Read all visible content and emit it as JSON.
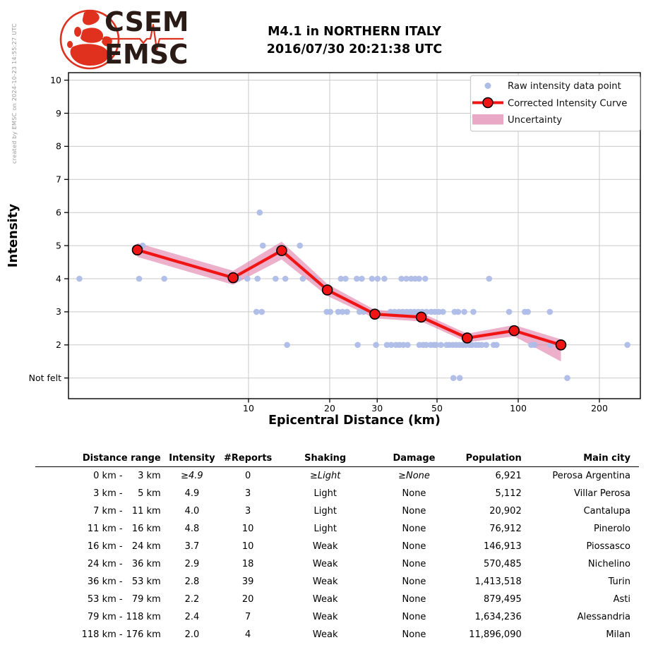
{
  "logo": {
    "top_text": "CSEM",
    "bottom_text": "EMSC",
    "red": "#e0301e",
    "dark": "#2b1b17"
  },
  "header": {
    "title_line1": "M4.1 in NORTHERN ITALY",
    "title_line2": "2016/07/30 20:21:38 UTC"
  },
  "watermark": "created by EMSC on 2024-10-23 14:55:27 UTC",
  "chart_data": {
    "type": "line",
    "title": "M4.1 in NORTHERN ITALY 2016/07/30 20:21:38 UTC",
    "xlabel": "Epicentral Distance (km)",
    "ylabel": "Intensity",
    "x_scale": "log",
    "x_ticks": [
      10,
      20,
      30,
      50,
      100,
      200
    ],
    "x_range_km": [
      2.2,
      280
    ],
    "y_tick_values": [
      10,
      9,
      8,
      7,
      6,
      5,
      4,
      3,
      2,
      1
    ],
    "y_tick_labels": [
      "10",
      "9",
      "8",
      "7",
      "6",
      "5",
      "4",
      "3",
      "2",
      "Not felt"
    ],
    "y_range": [
      0.38,
      10.23
    ],
    "grid": true,
    "legend_position": "upper right",
    "legend": [
      "Raw intensity data point",
      "Corrected Intensity Curve",
      "Uncertainty"
    ],
    "colors": {
      "raw": "#aebce8",
      "curve": "#f11414",
      "marker_edge": "#000000",
      "band": "rgba(219,97,149,0.5)",
      "band_legend": "#e9a8c5",
      "grid": "#c9c9c9",
      "frame": "#000000"
    },
    "series": [
      {
        "name": "Corrected Intensity Curve",
        "d_km": [
          3.87,
          8.77,
          13.27,
          19.6,
          29.4,
          43.7,
          64.7,
          96.6,
          144
        ],
        "intensity": [
          4.87,
          4.03,
          4.85,
          3.66,
          2.93,
          2.84,
          2.21,
          2.43,
          2.0
        ]
      }
    ],
    "band": {
      "d_km": [
        3.87,
        8.77,
        13.27,
        19.6,
        29.4,
        43.7,
        64.7,
        96.6,
        144
      ],
      "upper": [
        5.08,
        4.24,
        5.12,
        3.84,
        3.06,
        2.97,
        2.34,
        2.6,
        2.17
      ],
      "lower": [
        4.66,
        3.82,
        4.58,
        3.48,
        2.8,
        2.71,
        2.08,
        2.26,
        1.5
      ]
    },
    "raw_points": [
      [
        11.0,
        6
      ],
      [
        4.05,
        5
      ],
      [
        11.3,
        5
      ],
      [
        15.5,
        5
      ],
      [
        2.36,
        4
      ],
      [
        3.93,
        4
      ],
      [
        4.87,
        4
      ],
      [
        8.8,
        4
      ],
      [
        9.15,
        4
      ],
      [
        9.9,
        4
      ],
      [
        10.8,
        4
      ],
      [
        12.6,
        4
      ],
      [
        13.7,
        4
      ],
      [
        15.9,
        4
      ],
      [
        17.6,
        4
      ],
      [
        22.0,
        4
      ],
      [
        22.9,
        4
      ],
      [
        25.2,
        4
      ],
      [
        26.3,
        4
      ],
      [
        28.7,
        4
      ],
      [
        30.1,
        4
      ],
      [
        31.9,
        4
      ],
      [
        36.9,
        4
      ],
      [
        38.5,
        4
      ],
      [
        40.1,
        4
      ],
      [
        41.5,
        4
      ],
      [
        42.9,
        4
      ],
      [
        45.2,
        4
      ],
      [
        78.0,
        4
      ],
      [
        10.7,
        3
      ],
      [
        11.2,
        3
      ],
      [
        19.5,
        3
      ],
      [
        20.1,
        3
      ],
      [
        21.5,
        3
      ],
      [
        22.3,
        3
      ],
      [
        23.2,
        3
      ],
      [
        25.8,
        3
      ],
      [
        26.7,
        3
      ],
      [
        28.8,
        3
      ],
      [
        33.6,
        3
      ],
      [
        34.8,
        3
      ],
      [
        36.1,
        3
      ],
      [
        37.3,
        3
      ],
      [
        38.6,
        3
      ],
      [
        39.9,
        3
      ],
      [
        41.2,
        3
      ],
      [
        42.6,
        3
      ],
      [
        44.1,
        3
      ],
      [
        45.7,
        3
      ],
      [
        47.6,
        3
      ],
      [
        49.1,
        3
      ],
      [
        50.8,
        3
      ],
      [
        52.6,
        3
      ],
      [
        58.1,
        3
      ],
      [
        59.9,
        3
      ],
      [
        63.1,
        3
      ],
      [
        68.2,
        3
      ],
      [
        92.5,
        3
      ],
      [
        105.8,
        3
      ],
      [
        108.6,
        3
      ],
      [
        131.0,
        3
      ],
      [
        13.9,
        2
      ],
      [
        25.4,
        2
      ],
      [
        29.7,
        2
      ],
      [
        32.6,
        2
      ],
      [
        33.8,
        2
      ],
      [
        35.2,
        2
      ],
      [
        36.3,
        2
      ],
      [
        37.5,
        2
      ],
      [
        38.9,
        2
      ],
      [
        43.0,
        2
      ],
      [
        44.4,
        2
      ],
      [
        45.6,
        2
      ],
      [
        47.4,
        2
      ],
      [
        48.8,
        2
      ],
      [
        49.7,
        2
      ],
      [
        51.7,
        2
      ],
      [
        54.2,
        2
      ],
      [
        55.5,
        2
      ],
      [
        57.2,
        2
      ],
      [
        58.8,
        2
      ],
      [
        60.5,
        2
      ],
      [
        62.2,
        2
      ],
      [
        63.9,
        2
      ],
      [
        66.0,
        2
      ],
      [
        67.4,
        2
      ],
      [
        69.6,
        2
      ],
      [
        71.4,
        2
      ],
      [
        73.3,
        2
      ],
      [
        76.1,
        2
      ],
      [
        81.1,
        2
      ],
      [
        83.1,
        2
      ],
      [
        111.7,
        2
      ],
      [
        115.0,
        2
      ],
      [
        131.7,
        2
      ],
      [
        254.0,
        2
      ],
      [
        57.5,
        1
      ],
      [
        60.7,
        1
      ],
      [
        152.0,
        1
      ]
    ]
  },
  "table": {
    "headers": [
      "Distance range",
      "Intensity",
      "#Reports",
      "Shaking",
      "Damage",
      "Population",
      "Main city"
    ],
    "rows": [
      {
        "range_from": "0 km",
        "range_to": "3 km",
        "intensity": "≥4.9",
        "reports": "0",
        "shaking": "≥Light",
        "damage": "≥None",
        "population": "6,921",
        "city": "Perosa Argentina",
        "emphasis": true
      },
      {
        "range_from": "3 km",
        "range_to": "5 km",
        "intensity": "4.9",
        "reports": "3",
        "shaking": "Light",
        "damage": "None",
        "population": "5,112",
        "city": "Villar Perosa",
        "emphasis": false
      },
      {
        "range_from": "7 km",
        "range_to": "11 km",
        "intensity": "4.0",
        "reports": "3",
        "shaking": "Light",
        "damage": "None",
        "population": "20,902",
        "city": "Cantalupa",
        "emphasis": false
      },
      {
        "range_from": "11 km",
        "range_to": "16 km",
        "intensity": "4.8",
        "reports": "10",
        "shaking": "Light",
        "damage": "None",
        "population": "76,912",
        "city": "Pinerolo",
        "emphasis": false
      },
      {
        "range_from": "16 km",
        "range_to": "24 km",
        "intensity": "3.7",
        "reports": "10",
        "shaking": "Weak",
        "damage": "None",
        "population": "146,913",
        "city": "Piossasco",
        "emphasis": false
      },
      {
        "range_from": "24 km",
        "range_to": "36 km",
        "intensity": "2.9",
        "reports": "18",
        "shaking": "Weak",
        "damage": "None",
        "population": "570,485",
        "city": "Nichelino",
        "emphasis": false
      },
      {
        "range_from": "36 km",
        "range_to": "53 km",
        "intensity": "2.8",
        "reports": "39",
        "shaking": "Weak",
        "damage": "None",
        "population": "1,413,518",
        "city": "Turin",
        "emphasis": false
      },
      {
        "range_from": "53 km",
        "range_to": "79 km",
        "intensity": "2.2",
        "reports": "20",
        "shaking": "Weak",
        "damage": "None",
        "population": "879,495",
        "city": "Asti",
        "emphasis": false
      },
      {
        "range_from": "79 km",
        "range_to": "118 km",
        "intensity": "2.4",
        "reports": "7",
        "shaking": "Weak",
        "damage": "None",
        "population": "1,634,236",
        "city": "Alessandria",
        "emphasis": false
      },
      {
        "range_from": "118 km",
        "range_to": "176 km",
        "intensity": "2.0",
        "reports": "4",
        "shaking": "Weak",
        "damage": "None",
        "population": "11,896,090",
        "city": "Milan",
        "emphasis": false
      }
    ]
  }
}
